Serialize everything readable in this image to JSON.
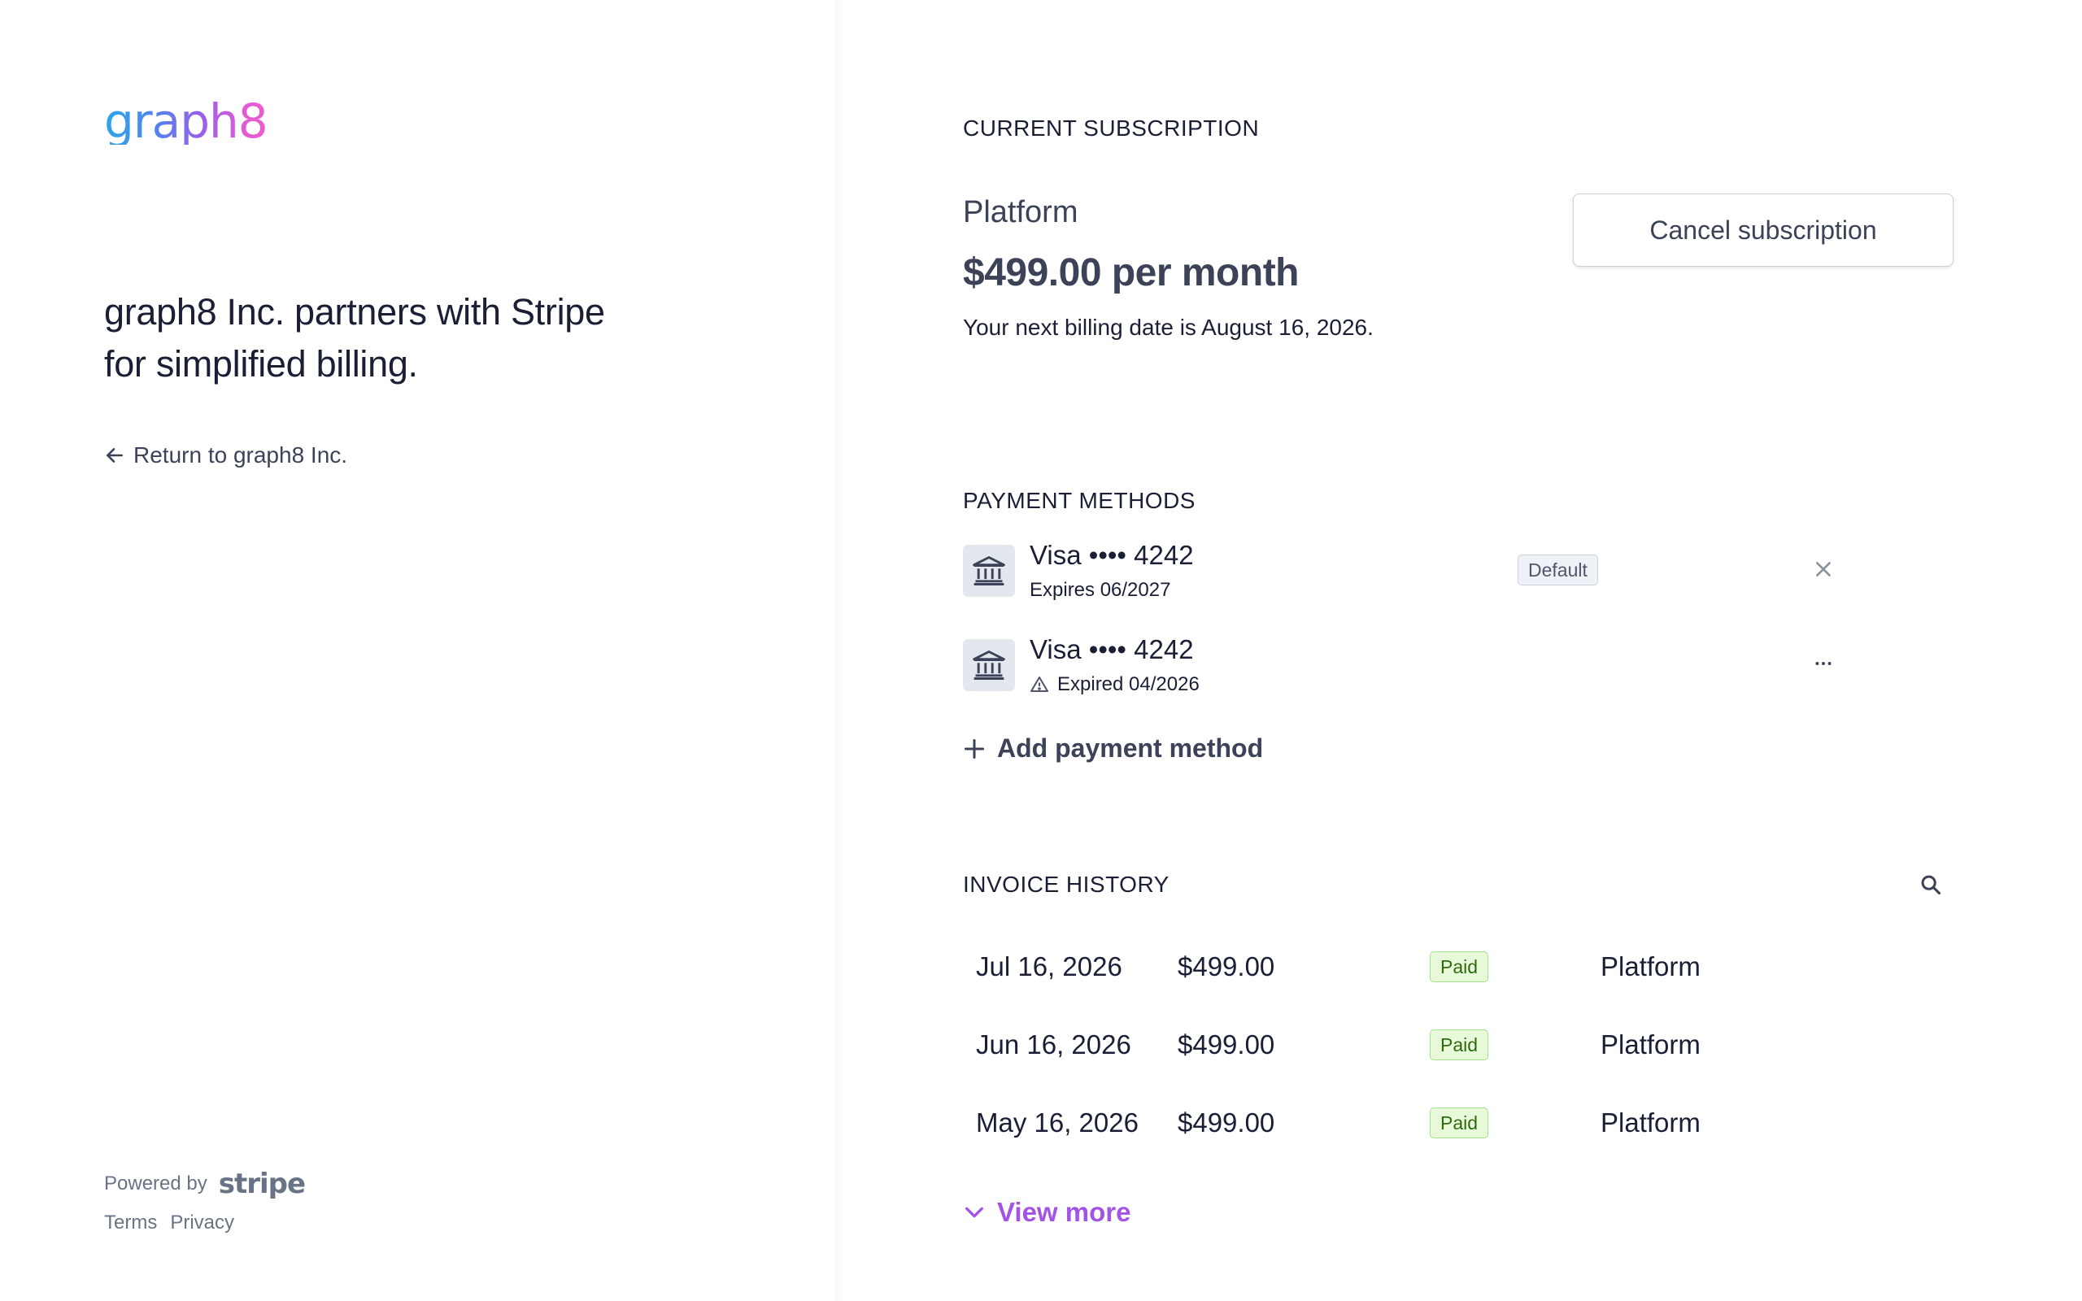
{
  "brand": {
    "logo_text": "graph8",
    "tagline": "graph8 Inc. partners with Stripe for simplified billing.",
    "return_label": "Return to graph8 Inc."
  },
  "footer": {
    "powered_by": "Powered by",
    "stripe_word": "stripe",
    "links": [
      "Terms",
      "Privacy"
    ]
  },
  "subscription": {
    "heading": "CURRENT SUBSCRIPTION",
    "plan_name": "Platform",
    "price": "$499.00 per month",
    "billing_note": "Your next billing date is August 16, 2026.",
    "cancel_label": "Cancel subscription"
  },
  "payment_methods": {
    "heading": "PAYMENT METHODS",
    "items": [
      {
        "title": "Visa •••• 4242",
        "subtitle": "Expires 06/2027",
        "badge": "Default"
      },
      {
        "title": "Visa •••• 4242",
        "subtitle": "Expired 04/2026"
      }
    ],
    "add_label": "Add payment method"
  },
  "invoices": {
    "heading": "INVOICE HISTORY",
    "rows": [
      {
        "date": "Jul 16, 2026",
        "amount": "$499.00",
        "status": "Paid",
        "plan": "Platform"
      },
      {
        "date": "Jun 16, 2026",
        "amount": "$499.00",
        "status": "Paid",
        "plan": "Platform"
      },
      {
        "date": "May 16, 2026",
        "amount": "$499.00",
        "status": "Paid",
        "plan": "Platform"
      }
    ],
    "view_more_label": "View more"
  },
  "icons": [
    "arrow-left-icon",
    "bank-icon",
    "close-icon",
    "more-horizontal-icon",
    "warning-icon",
    "plus-icon",
    "search-icon",
    "chevron-down-icon"
  ],
  "colors": {
    "accent": "#a354e4",
    "paid_bg": "#e7f9d9",
    "paid_text": "#2e6b0f",
    "text": "#1a1f36",
    "muted": "#697386"
  }
}
